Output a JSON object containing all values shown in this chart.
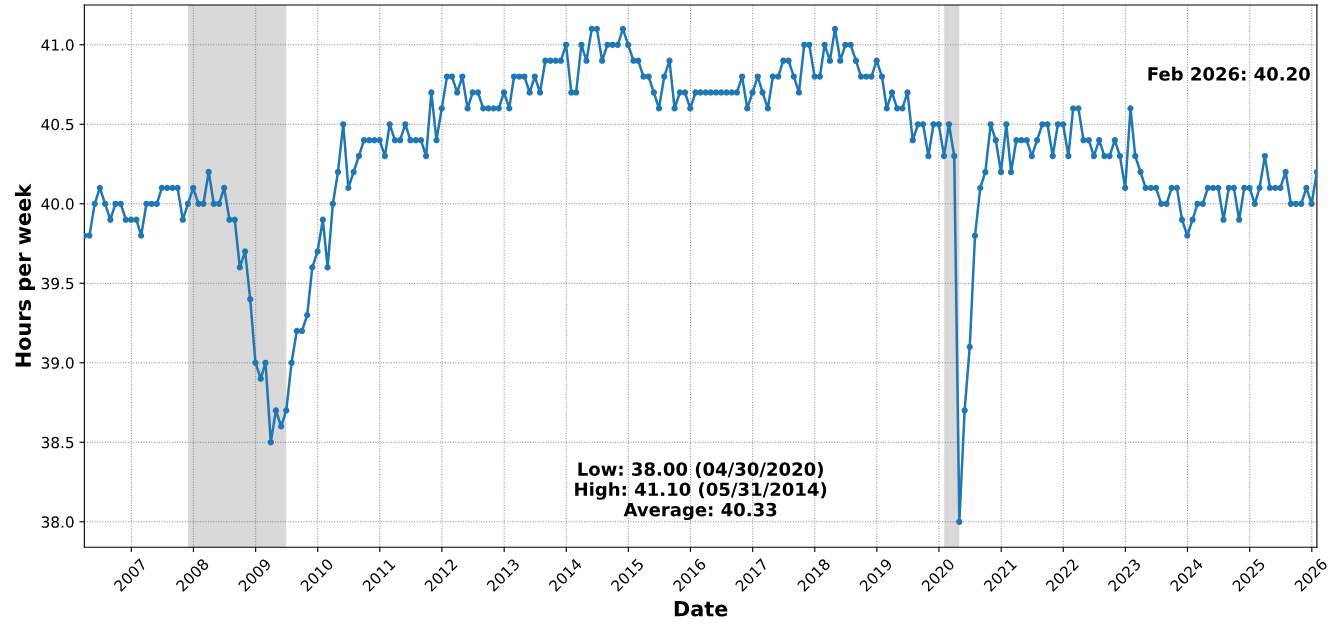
{
  "chart_data": {
    "type": "line",
    "xlabel": "Date",
    "ylabel": "Hours per week",
    "x": [
      "2006-03-31",
      "2006-04-30",
      "2006-05-31",
      "2006-06-30",
      "2006-07-31",
      "2006-08-31",
      "2006-09-30",
      "2006-10-31",
      "2006-11-30",
      "2006-12-31",
      "2007-01-31",
      "2007-02-28",
      "2007-03-31",
      "2007-04-30",
      "2007-05-31",
      "2007-06-30",
      "2007-07-31",
      "2007-08-31",
      "2007-09-30",
      "2007-10-31",
      "2007-11-30",
      "2007-12-31",
      "2008-01-31",
      "2008-02-29",
      "2008-03-31",
      "2008-04-30",
      "2008-05-31",
      "2008-06-30",
      "2008-07-31",
      "2008-08-31",
      "2008-09-30",
      "2008-10-31",
      "2008-11-30",
      "2008-12-31",
      "2009-01-31",
      "2009-02-28",
      "2009-03-31",
      "2009-04-30",
      "2009-05-31",
      "2009-06-30",
      "2009-07-31",
      "2009-08-31",
      "2009-09-30",
      "2009-10-31",
      "2009-11-30",
      "2009-12-31",
      "2010-01-31",
      "2010-02-28",
      "2010-03-31",
      "2010-04-30",
      "2010-05-31",
      "2010-06-30",
      "2010-07-31",
      "2010-08-31",
      "2010-09-30",
      "2010-10-31",
      "2010-11-30",
      "2010-12-31",
      "2011-01-31",
      "2011-02-28",
      "2011-03-31",
      "2011-04-30",
      "2011-05-31",
      "2011-06-30",
      "2011-07-31",
      "2011-08-31",
      "2011-09-30",
      "2011-10-31",
      "2011-11-30",
      "2011-12-31",
      "2012-01-31",
      "2012-02-29",
      "2012-03-31",
      "2012-04-30",
      "2012-05-31",
      "2012-06-30",
      "2012-07-31",
      "2012-08-31",
      "2012-09-30",
      "2012-10-31",
      "2012-11-30",
      "2012-12-31",
      "2013-01-31",
      "2013-02-28",
      "2013-03-31",
      "2013-04-30",
      "2013-05-31",
      "2013-06-30",
      "2013-07-31",
      "2013-08-31",
      "2013-09-30",
      "2013-10-31",
      "2013-11-30",
      "2013-12-31",
      "2014-01-31",
      "2014-02-28",
      "2014-03-31",
      "2014-04-30",
      "2014-05-31",
      "2014-06-30",
      "2014-07-31",
      "2014-08-31",
      "2014-09-30",
      "2014-10-31",
      "2014-11-30",
      "2014-12-31",
      "2015-01-31",
      "2015-02-28",
      "2015-03-31",
      "2015-04-30",
      "2015-05-31",
      "2015-06-30",
      "2015-07-31",
      "2015-08-31",
      "2015-09-30",
      "2015-10-31",
      "2015-11-30",
      "2015-12-31",
      "2016-01-31",
      "2016-02-29",
      "2016-03-31",
      "2016-04-30",
      "2016-05-31",
      "2016-06-30",
      "2016-07-31",
      "2016-08-31",
      "2016-09-30",
      "2016-10-31",
      "2016-11-30",
      "2016-12-31",
      "2017-01-31",
      "2017-02-28",
      "2017-03-31",
      "2017-04-30",
      "2017-05-31",
      "2017-06-30",
      "2017-07-31",
      "2017-08-31",
      "2017-09-30",
      "2017-10-31",
      "2017-11-30",
      "2017-12-31",
      "2018-01-31",
      "2018-02-28",
      "2018-03-31",
      "2018-04-30",
      "2018-05-31",
      "2018-06-30",
      "2018-07-31",
      "2018-08-31",
      "2018-09-30",
      "2018-10-31",
      "2018-11-30",
      "2018-12-31",
      "2019-01-31",
      "2019-02-28",
      "2019-03-31",
      "2019-04-30",
      "2019-05-31",
      "2019-06-30",
      "2019-07-31",
      "2019-08-31",
      "2019-09-30",
      "2019-10-31",
      "2019-11-30",
      "2019-12-31",
      "2020-01-31",
      "2020-02-29",
      "2020-03-31",
      "2020-04-30",
      "2020-05-31",
      "2020-06-30",
      "2020-07-31",
      "2020-08-31",
      "2020-09-30",
      "2020-10-31",
      "2020-11-30",
      "2020-12-31",
      "2021-01-31",
      "2021-02-28",
      "2021-03-31",
      "2021-04-30",
      "2021-05-31",
      "2021-06-30",
      "2021-07-31",
      "2021-08-31",
      "2021-09-30",
      "2021-10-31",
      "2021-11-30",
      "2021-12-31",
      "2022-01-31",
      "2022-02-28",
      "2022-03-31",
      "2022-04-30",
      "2022-05-31",
      "2022-06-30",
      "2022-07-31",
      "2022-08-31",
      "2022-09-30",
      "2022-10-31",
      "2022-11-30",
      "2022-12-31",
      "2023-01-31",
      "2023-02-28",
      "2023-03-31",
      "2023-04-30",
      "2023-05-31",
      "2023-06-30",
      "2023-07-31",
      "2023-08-31",
      "2023-09-30",
      "2023-10-31",
      "2023-11-30",
      "2023-12-31",
      "2024-01-31",
      "2024-02-29",
      "2024-03-31",
      "2024-04-30",
      "2024-05-31",
      "2024-06-30",
      "2024-07-31",
      "2024-08-31",
      "2024-09-30",
      "2024-10-31",
      "2024-11-30",
      "2024-12-31",
      "2025-01-31",
      "2025-02-28",
      "2025-03-31",
      "2025-04-30",
      "2025-05-31",
      "2025-06-30",
      "2025-07-31",
      "2025-08-31",
      "2025-09-30",
      "2025-10-31",
      "2025-11-30",
      "2025-12-31",
      "2026-01-31"
    ],
    "series": [
      {
        "color": "#1f77b4",
        "values": [
          39.8,
          39.8,
          40.0,
          40.1,
          40.0,
          39.9,
          40.0,
          40.0,
          39.9,
          39.9,
          39.9,
          39.8,
          40.0,
          40.0,
          40.0,
          40.1,
          40.1,
          40.1,
          40.1,
          39.9,
          40.0,
          40.1,
          40.0,
          40.0,
          40.2,
          40.0,
          40.0,
          40.1,
          39.9,
          39.9,
          39.6,
          39.7,
          39.4,
          39.0,
          38.9,
          39.0,
          38.5,
          38.7,
          38.6,
          38.7,
          39.0,
          39.2,
          39.2,
          39.3,
          39.6,
          39.7,
          39.9,
          39.6,
          40.0,
          40.2,
          40.5,
          40.1,
          40.2,
          40.3,
          40.4,
          40.4,
          40.4,
          40.4,
          40.3,
          40.5,
          40.4,
          40.4,
          40.5,
          40.4,
          40.4,
          40.4,
          40.3,
          40.7,
          40.4,
          40.6,
          40.8,
          40.8,
          40.7,
          40.8,
          40.6,
          40.7,
          40.7,
          40.6,
          40.6,
          40.6,
          40.6,
          40.7,
          40.6,
          40.8,
          40.8,
          40.8,
          40.7,
          40.8,
          40.7,
          40.9,
          40.9,
          40.9,
          40.9,
          41.0,
          40.7,
          40.7,
          41.0,
          40.9,
          41.1,
          41.1,
          40.9,
          41.0,
          41.0,
          41.0,
          41.1,
          41.0,
          40.9,
          40.9,
          40.8,
          40.8,
          40.7,
          40.6,
          40.8,
          40.9,
          40.6,
          40.7,
          40.7,
          40.6,
          40.7,
          40.7,
          40.7,
          40.7,
          40.7,
          40.7,
          40.7,
          40.7,
          40.7,
          40.8,
          40.6,
          40.7,
          40.8,
          40.7,
          40.6,
          40.8,
          40.8,
          40.9,
          40.9,
          40.8,
          40.7,
          41.0,
          41.0,
          40.8,
          40.8,
          41.0,
          40.9,
          41.1,
          40.9,
          41.0,
          41.0,
          40.9,
          40.8,
          40.8,
          40.8,
          40.9,
          40.8,
          40.6,
          40.7,
          40.6,
          40.6,
          40.7,
          40.4,
          40.5,
          40.5,
          40.3,
          40.5,
          40.5,
          40.3,
          40.5,
          40.3,
          38.0,
          38.7,
          39.1,
          39.8,
          40.1,
          40.2,
          40.5,
          40.4,
          40.2,
          40.5,
          40.2,
          40.4,
          40.4,
          40.4,
          40.3,
          40.4,
          40.5,
          40.5,
          40.3,
          40.5,
          40.5,
          40.3,
          40.6,
          40.6,
          40.4,
          40.4,
          40.3,
          40.4,
          40.3,
          40.3,
          40.4,
          40.3,
          40.1,
          40.6,
          40.3,
          40.2,
          40.1,
          40.1,
          40.1,
          40.0,
          40.0,
          40.1,
          40.1,
          39.9,
          39.8,
          39.9,
          40.0,
          40.0,
          40.1,
          40.1,
          40.1,
          39.9,
          40.1,
          40.1,
          39.9,
          40.1,
          40.1,
          40.0,
          40.1,
          40.3,
          40.1,
          40.1,
          40.1,
          40.2,
          40.0,
          40.0,
          40.0,
          40.1,
          40.0,
          40.2
        ]
      }
    ],
    "xlim": [
      "2006-03-31",
      "2026-01-31"
    ],
    "xticks": [
      "2007",
      "2008",
      "2009",
      "2010",
      "2011",
      "2012",
      "2013",
      "2014",
      "2015",
      "2016",
      "2017",
      "2018",
      "2019",
      "2020",
      "2021",
      "2022",
      "2023",
      "2024",
      "2025",
      "2026"
    ],
    "ylim": [
      37.84,
      41.25
    ],
    "yticks": [
      {
        "value": 38,
        "label": "38.0"
      },
      38.5,
      {
        "value": 39,
        "label": "39.0"
      },
      39.5,
      {
        "value": 40,
        "label": "40.0"
      },
      40.5,
      {
        "value": 41,
        "label": "41.0"
      }
    ],
    "bands": [
      {
        "axis": "x",
        "from": "2007-12-01",
        "to": "2009-06-30",
        "color": "#d9d9d9"
      },
      {
        "axis": "x",
        "from": "2020-02-01",
        "to": "2020-04-30",
        "color": "#d9d9d9"
      }
    ],
    "annotations": [
      "Feb 2026: 40.20",
      "Low: 38.00 (04/30/2020)\nHigh: 41.10 (05/31/2014)\nAverage: 40.33"
    ],
    "grid": true,
    "marker": "circle",
    "line_style": "solid"
  }
}
